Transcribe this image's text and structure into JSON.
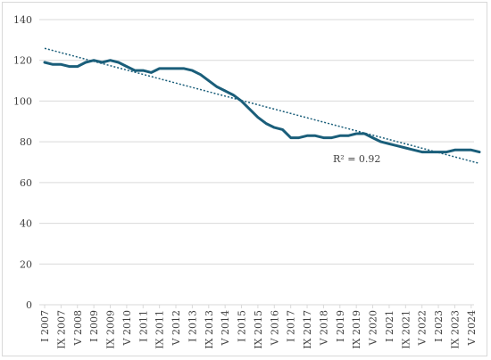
{
  "chart_data": {
    "type": "line",
    "title": "",
    "xlabel": "",
    "ylabel": "",
    "ylim": [
      0,
      140
    ],
    "yticks": [
      0,
      20,
      40,
      60,
      80,
      100,
      120,
      140
    ],
    "grid": "horizontal",
    "legend": "none",
    "x_tick_labels": [
      "I 2007",
      "IX 2007",
      "V 2008",
      "I 2009",
      "IX 2009",
      "V 2010",
      "I 2011",
      "IX 2011",
      "V 2012",
      "I 2013",
      "IX 2013",
      "V 2014",
      "I 2015",
      "IX 2015",
      "V 2016",
      "I 2017",
      "IX 2017",
      "V 2018",
      "I 2019",
      "IX 2019",
      "V 2020",
      "I 2021",
      "IX 2021",
      "V 2022",
      "I 2023",
      "IX 2023",
      "V 2024"
    ],
    "series": [
      {
        "color": "#1a5e7a",
        "x": [
          "I 2007",
          "V 2007",
          "IX 2007",
          "I 2008",
          "V 2008",
          "IX 2008",
          "I 2009",
          "V 2009",
          "IX 2009",
          "I 2010",
          "V 2010",
          "IX 2010",
          "I 2011",
          "V 2011",
          "IX 2011",
          "I 2012",
          "V 2012",
          "IX 2012",
          "I 2013",
          "V 2013",
          "IX 2013",
          "I 2014",
          "V 2014",
          "IX 2014",
          "I 2015",
          "V 2015",
          "IX 2015",
          "I 2016",
          "V 2016",
          "IX 2016",
          "I 2017",
          "V 2017",
          "IX 2017",
          "I 2018",
          "V 2018",
          "IX 2018",
          "I 2019",
          "V 2019",
          "IX 2019",
          "I 2020",
          "V 2020",
          "IX 2020",
          "I 2021",
          "V 2021",
          "IX 2021",
          "I 2022",
          "V 2022",
          "IX 2022",
          "I 2023",
          "V 2023",
          "IX 2023",
          "I 2024",
          "V 2024",
          "IX 2024"
        ],
        "values": [
          119,
          118,
          118,
          117,
          117,
          119,
          120,
          119,
          120,
          119,
          117,
          115,
          115,
          114,
          116,
          116,
          116,
          116,
          115,
          113,
          110,
          107,
          105,
          103,
          100,
          96,
          92,
          89,
          87,
          86,
          82,
          82,
          83,
          83,
          82,
          82,
          83,
          83,
          84,
          84,
          82,
          80,
          79,
          78,
          77,
          76,
          75,
          75,
          75,
          75,
          76,
          76,
          76,
          75
        ]
      }
    ],
    "trendline": {
      "style": "dotted",
      "color": "#1a5e7a",
      "start": {
        "x": "I 2007",
        "y": 125.9
      },
      "end": {
        "x": "IX 2024",
        "y": 69.4
      },
      "label": "R² = 0.92"
    }
  }
}
